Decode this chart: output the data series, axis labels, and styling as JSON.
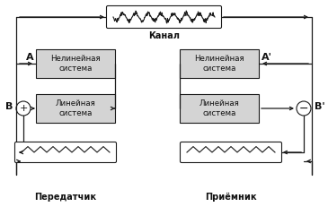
{
  "title_transmitter": "Передатчик",
  "title_receiver": "Приёмник",
  "label_canal": "Канал",
  "label_A": "A",
  "label_Aprime": "A'",
  "label_B": "B",
  "label_Bprime": "B'",
  "box_nonlinear_left_text": "Нелинейная\nсистема",
  "box_linear_left_text": "Линейная\nсистема",
  "box_nonlinear_right_text": "Нелинейная\nсистема",
  "box_linear_right_text": "Линейная\nсистема",
  "box_color": "#d4d4d4",
  "line_color": "#1a1a1a",
  "text_color": "#111111"
}
